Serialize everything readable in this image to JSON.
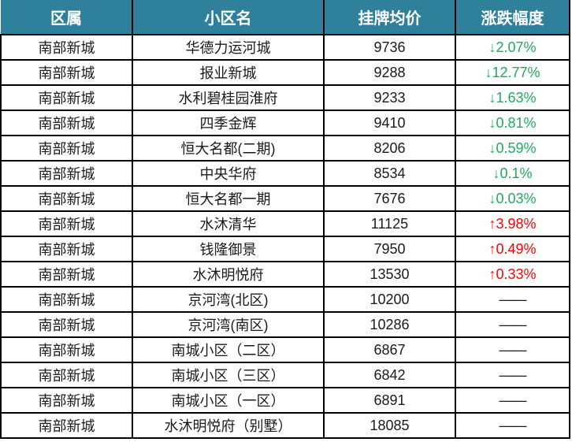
{
  "colors": {
    "header_bg": "#2F809A",
    "header_text": "#FFFFFF",
    "down_green": "#1FAB5E",
    "up_red": "#FF0000",
    "border": "#000000",
    "body_text": "#1A1A1A"
  },
  "chart_data": {
    "type": "table",
    "columns": [
      {
        "key": "district",
        "label": "区属"
      },
      {
        "key": "community",
        "label": "小区名"
      },
      {
        "key": "price",
        "label": "挂牌均价"
      },
      {
        "key": "change",
        "label": "涨跌幅度"
      }
    ],
    "rows": [
      {
        "district": "南部新城",
        "community": "华德力运河城",
        "price": "9736",
        "change": "↓2.07%",
        "direction": "down"
      },
      {
        "district": "南部新城",
        "community": "报业新城",
        "price": "9288",
        "change": "↓12.77%",
        "direction": "down"
      },
      {
        "district": "南部新城",
        "community": "水利碧桂园淮府",
        "price": "9233",
        "change": "↓1.63%",
        "direction": "down"
      },
      {
        "district": "南部新城",
        "community": "四季金辉",
        "price": "9410",
        "change": "↓0.81%",
        "direction": "down"
      },
      {
        "district": "南部新城",
        "community": "恒大名都(二期)",
        "price": "8206",
        "change": "↓0.59%",
        "direction": "down"
      },
      {
        "district": "南部新城",
        "community": "中央华府",
        "price": "8534",
        "change": "↓0.1%",
        "direction": "down"
      },
      {
        "district": "南部新城",
        "community": "恒大名都一期",
        "price": "7676",
        "change": "↓0.03%",
        "direction": "down"
      },
      {
        "district": "南部新城",
        "community": "水沐清华",
        "price": "11125",
        "change": "↑3.98%",
        "direction": "up"
      },
      {
        "district": "南部新城",
        "community": "钱隆御景",
        "price": "7950",
        "change": "↑0.49%",
        "direction": "up"
      },
      {
        "district": "南部新城",
        "community": "水沐明悦府",
        "price": "13530",
        "change": "↑0.33%",
        "direction": "up"
      },
      {
        "district": "南部新城",
        "community": "京河湾(北区)",
        "price": "10200",
        "change": "——",
        "direction": "none"
      },
      {
        "district": "南部新城",
        "community": "京河湾(南区)",
        "price": "10286",
        "change": "——",
        "direction": "none"
      },
      {
        "district": "南部新城",
        "community": "南城小区（二区）",
        "price": "6867",
        "change": "——",
        "direction": "none"
      },
      {
        "district": "南部新城",
        "community": "南城小区（三区）",
        "price": "6842",
        "change": "——",
        "direction": "none"
      },
      {
        "district": "南部新城",
        "community": "南城小区（一区）",
        "price": "6891",
        "change": "——",
        "direction": "none"
      },
      {
        "district": "南部新城",
        "community": "水沐明悦府（别墅）",
        "price": "18085",
        "change": "——",
        "direction": "none"
      }
    ]
  }
}
